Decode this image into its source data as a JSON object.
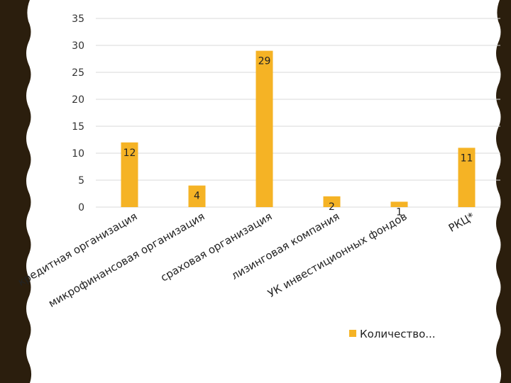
{
  "colors": {
    "bar": "#F5B325",
    "frame_dark": "#2B1E0D",
    "grid": "#D9D9D9",
    "background": "#FFFFFF"
  },
  "chart_data": {
    "type": "bar",
    "categories": [
      "кредитная организация",
      "микрофинансовая организация",
      "сраховая организация",
      "лизинговая компания",
      "УК инвестиционных фондов",
      "РКЦ*"
    ],
    "series": [
      {
        "name": "Количество...",
        "values": [
          12,
          4,
          29,
          2,
          1,
          11
        ]
      }
    ],
    "data_labels": [
      "12",
      "4",
      "29",
      "2",
      "1",
      "11"
    ],
    "ylim": [
      0,
      35
    ],
    "yticks": [
      "0",
      "5",
      "10",
      "15",
      "20",
      "25",
      "30",
      "35"
    ],
    "grid": true,
    "legend": "bottom-right"
  }
}
